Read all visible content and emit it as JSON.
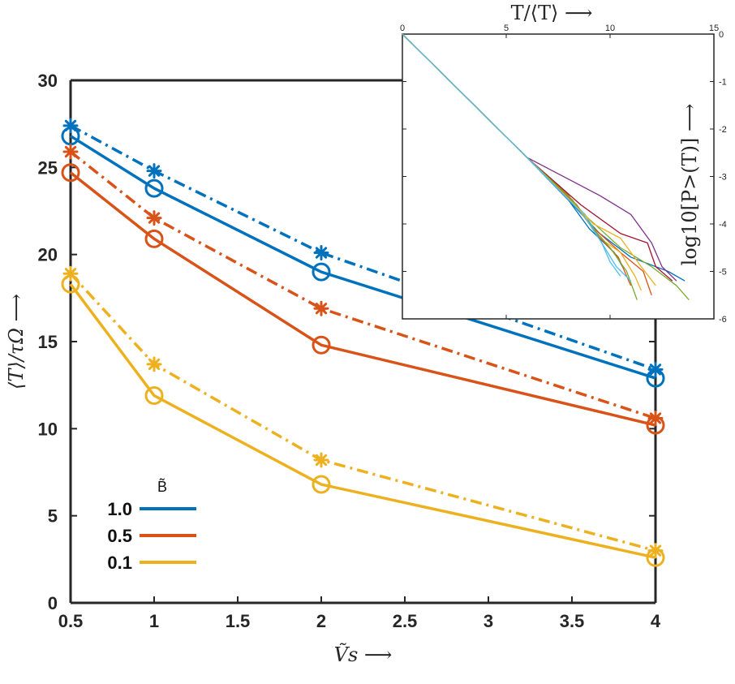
{
  "chart_data": [
    {
      "type": "line",
      "xlabel": "Ṽs ⟶",
      "ylabel": "⟨T⟩/τΩ ⟶",
      "x": [
        0.5,
        1,
        2,
        4
      ],
      "xlim": [
        0.5,
        4
      ],
      "ylim": [
        0,
        30
      ],
      "xticks": [
        "0.5",
        "1",
        "1.5",
        "2",
        "2.5",
        "3",
        "3.5",
        "4"
      ],
      "yticks": [
        "0",
        "5",
        "10",
        "15",
        "20",
        "25",
        "30"
      ],
      "legend": {
        "title": "B̃",
        "position": "bottom-left",
        "entries": [
          "1.0",
          "0.5",
          "0.1"
        ]
      },
      "series": [
        {
          "name": "1.0",
          "style": "solid",
          "marker": "circle",
          "color": "#0072BD",
          "values": [
            26.8,
            23.8,
            19.0,
            12.9
          ]
        },
        {
          "name": "1.0",
          "style": "dash-dot",
          "marker": "asterisk",
          "color": "#0072BD",
          "values": [
            27.4,
            24.8,
            20.1,
            13.4
          ]
        },
        {
          "name": "0.5",
          "style": "solid",
          "marker": "circle",
          "color": "#D95319",
          "values": [
            24.7,
            20.9,
            14.8,
            10.2
          ]
        },
        {
          "name": "0.5",
          "style": "dash-dot",
          "marker": "asterisk",
          "color": "#D95319",
          "values": [
            25.9,
            22.1,
            16.9,
            10.6
          ]
        },
        {
          "name": "0.1",
          "style": "solid",
          "marker": "circle",
          "color": "#EDB120",
          "values": [
            18.3,
            11.9,
            6.8,
            2.6
          ]
        },
        {
          "name": "0.1",
          "style": "dash-dot",
          "marker": "asterisk",
          "color": "#EDB120",
          "values": [
            18.9,
            13.7,
            8.2,
            3.0
          ]
        }
      ]
    },
    {
      "type": "line",
      "inset": true,
      "xlabel": "T/⟨T⟩ ⟶",
      "ylabel": "log10[P>(T)] ⟶",
      "xlim": [
        0,
        15
      ],
      "ylim": [
        -6,
        0
      ],
      "xticks": [
        "0",
        "5",
        "10",
        "15"
      ],
      "yticks": [
        "0",
        "-1",
        "-2",
        "-3",
        "-4",
        "-5",
        "-6"
      ],
      "axes_position": "x-top, y-right",
      "series": [
        {
          "color": "#0072BD",
          "x": [
            0,
            6,
            8,
            9.5,
            11,
            12.8,
            13.6
          ],
          "y": [
            0,
            -2.6,
            -3.5,
            -4.2,
            -4.7,
            -5.0,
            -5.2
          ]
        },
        {
          "color": "#D95319",
          "x": [
            0,
            6,
            8,
            9,
            10.5,
            11.6,
            12.0
          ],
          "y": [
            0,
            -2.6,
            -3.4,
            -4.0,
            -4.6,
            -5.0,
            -5.5
          ]
        },
        {
          "color": "#EDB120",
          "x": [
            0,
            6,
            8.5,
            9.5,
            10.5,
            11.2,
            11.5
          ],
          "y": [
            0,
            -2.6,
            -3.7,
            -4.3,
            -4.6,
            -5.1,
            -5.4
          ]
        },
        {
          "color": "#7E2F8E",
          "x": [
            0,
            6,
            9.5,
            11,
            12.0,
            12.5,
            13.2
          ],
          "y": [
            0,
            -2.6,
            -3.4,
            -3.8,
            -4.4,
            -4.9,
            -5.2
          ]
        },
        {
          "color": "#77AC30",
          "x": [
            0,
            6,
            8.5,
            10.5,
            12.0,
            13.2,
            13.8
          ],
          "y": [
            0,
            -2.6,
            -3.7,
            -4.5,
            -4.9,
            -5.3,
            -5.6
          ]
        },
        {
          "color": "#4DBEEE",
          "x": [
            0,
            6,
            8.8,
            9.5,
            10.0,
            10.5
          ],
          "y": [
            0,
            -2.6,
            -3.8,
            -4.3,
            -4.8,
            -5.1
          ]
        },
        {
          "color": "#A2142F",
          "x": [
            0,
            6,
            8.6,
            10.5,
            11.8,
            12.2,
            13.0
          ],
          "y": [
            0,
            -2.6,
            -3.6,
            -4.2,
            -4.4,
            -4.9,
            -5.2
          ]
        },
        {
          "color": "#0072BD",
          "x": [
            0,
            6,
            8.0,
            9.0,
            10.2,
            10.6
          ],
          "y": [
            0,
            -2.6,
            -3.5,
            -4.1,
            -4.6,
            -4.9
          ]
        },
        {
          "color": "#D95319",
          "x": [
            0,
            6,
            8.4,
            9.3,
            10.4,
            11.0
          ],
          "y": [
            0,
            -2.6,
            -3.6,
            -4.2,
            -4.7,
            -5.3
          ]
        },
        {
          "color": "#77AC30",
          "x": [
            0,
            6,
            8.2,
            9.2,
            10.0,
            10.8,
            11.3
          ],
          "y": [
            0,
            -2.6,
            -3.5,
            -4.1,
            -4.5,
            -5.0,
            -5.6
          ]
        },
        {
          "color": "#EDB120",
          "x": [
            0,
            6,
            8.3,
            9.2,
            10.5,
            11.5,
            12.2
          ],
          "y": [
            0,
            -2.6,
            -3.6,
            -4.0,
            -4.3,
            -4.9,
            -5.3
          ]
        },
        {
          "color": "#4DBEEE",
          "x": [
            0,
            6,
            8.7,
            9.6,
            10.3,
            11.0
          ],
          "y": [
            0,
            -2.6,
            -3.8,
            -4.4,
            -4.9,
            -5.2
          ]
        }
      ]
    }
  ]
}
